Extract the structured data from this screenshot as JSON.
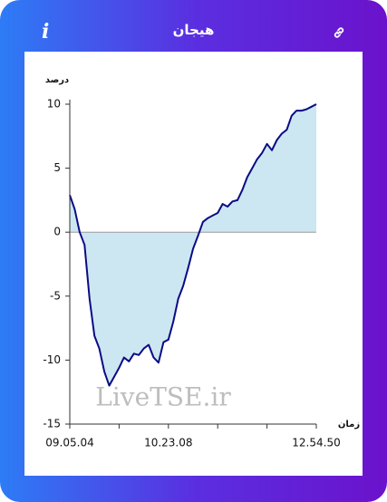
{
  "header": {
    "title": "هیجان",
    "info": "i"
  },
  "watermark": "LiveTSE.ir",
  "chart_data": {
    "type": "area",
    "y_label": "درصد",
    "x_label": "زمان",
    "categories": [
      "09.05.04",
      null,
      null,
      null,
      null,
      null,
      null,
      null,
      null,
      null,
      null,
      null,
      null,
      null,
      null,
      null,
      null,
      null,
      null,
      null,
      "10.23.08",
      null,
      null,
      null,
      null,
      null,
      null,
      null,
      null,
      null,
      null,
      null,
      null,
      null,
      null,
      null,
      null,
      null,
      null,
      null,
      null,
      null,
      null,
      null,
      null,
      null,
      null,
      null,
      null,
      null,
      "12.54.50"
    ],
    "values": [
      2.9,
      1.8,
      0,
      -1,
      -5.2,
      -8.1,
      -9.1,
      -10.9,
      -12,
      -11.3,
      -10.6,
      -9.8,
      -10.1,
      -9.5,
      -9.6,
      -9.1,
      -8.8,
      -9.8,
      -10.2,
      -8.6,
      -8.4,
      -7,
      -5.2,
      -4.2,
      -2.8,
      -1.3,
      -0.3,
      0.8,
      1.1,
      1.3,
      1.5,
      2.2,
      2,
      2.4,
      2.5,
      3.3,
      4.3,
      5,
      5.7,
      6.2,
      6.9,
      6.4,
      7.2,
      7.7,
      8,
      9.1,
      9.5,
      9.5,
      9.6,
      9.8,
      10
    ],
    "color": "#0b0b85",
    "fill_color": "#cce7f2",
    "ylim": [
      -15,
      10
    ],
    "yticks": [
      -15,
      -10,
      -5,
      0,
      5,
      10
    ]
  }
}
